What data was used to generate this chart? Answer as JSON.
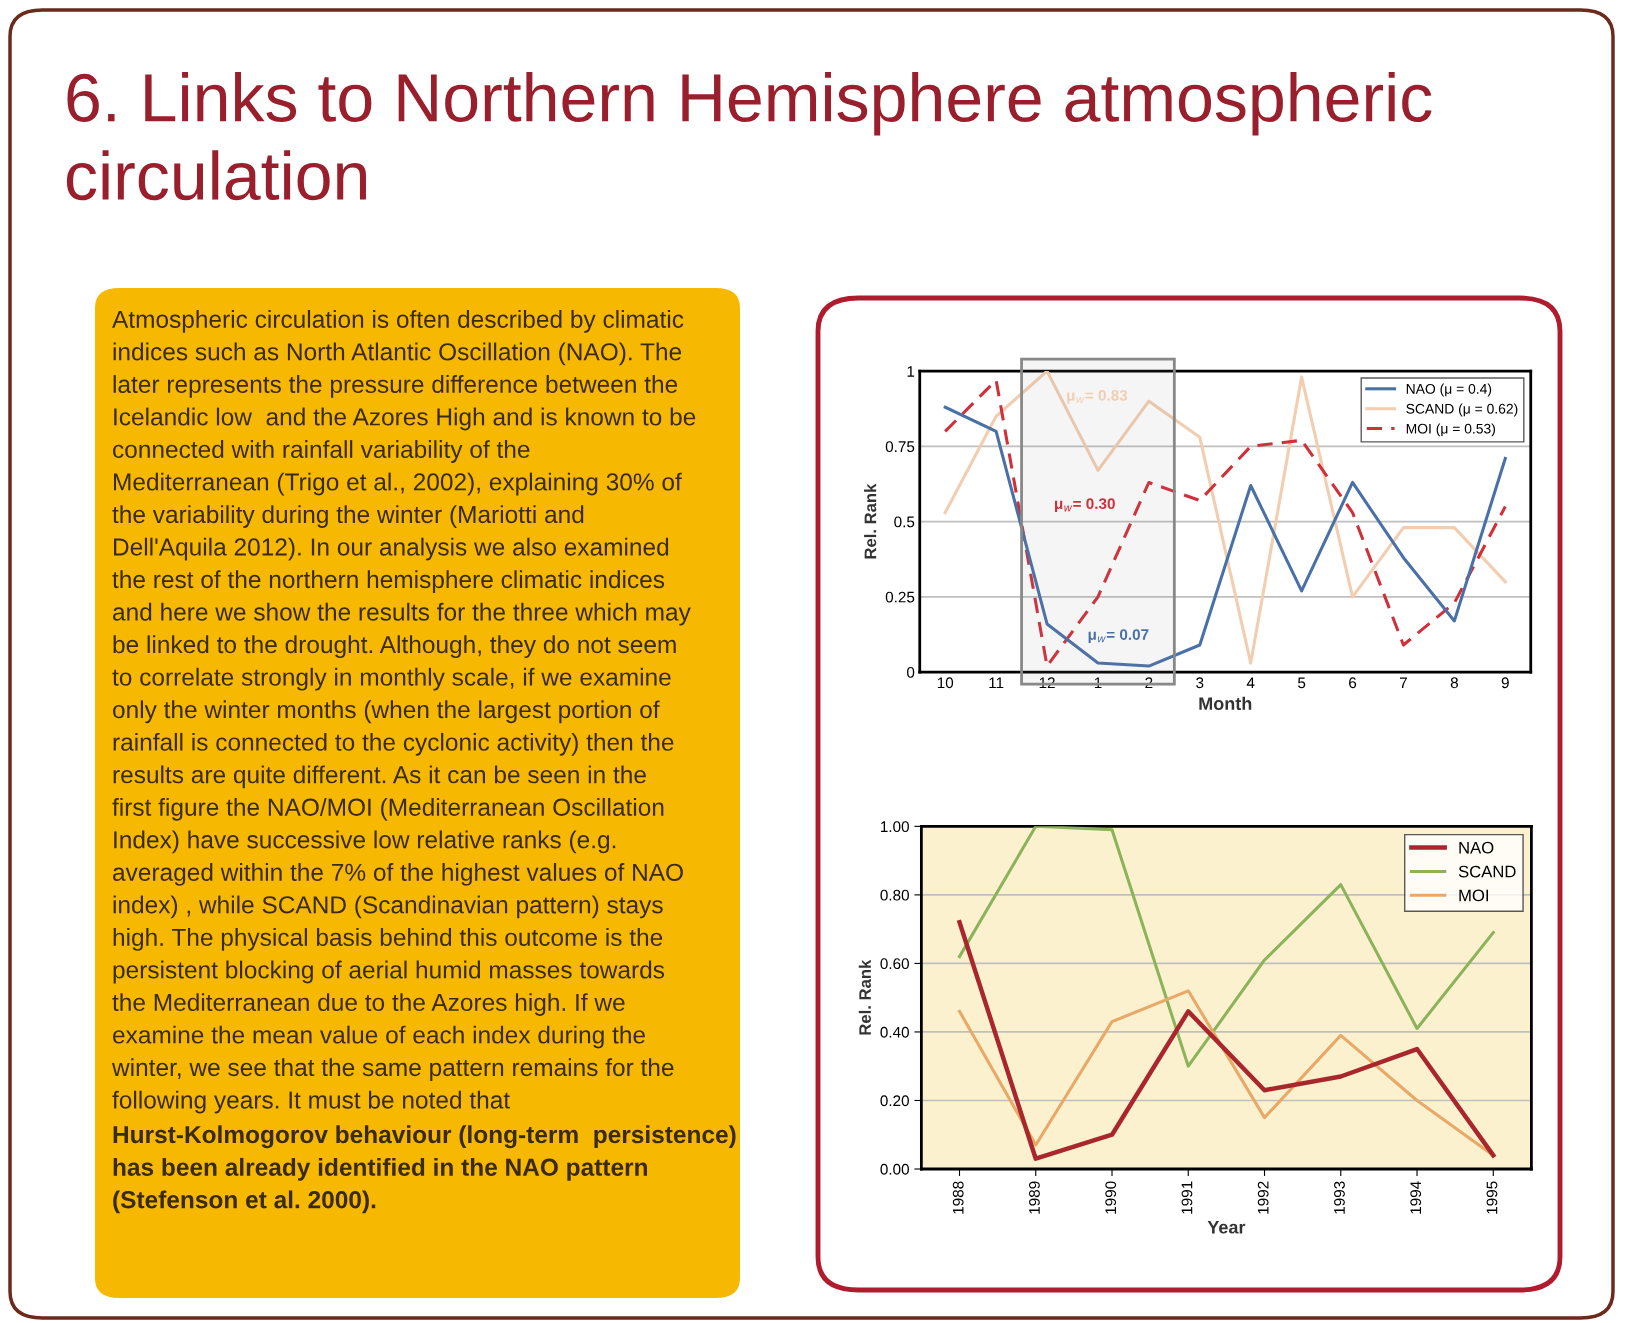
{
  "chart_data": [
    {
      "type": "other",
      "title": "6. Links to Northern Hemisphere atmospheric circulation",
      "annotations": [
        "Atmospheric circulation is often described by climatic\nindices such as North Atlantic Oscillation (NAO). The\nlater represents the pressure difference between the\nIcelandic low  and the Azores High and is known to be\nconnected with rainfall variability of the\nMediterranean (Trigo et al., 2002), explaining 30% of\nthe variability during the winter (Mariotti and\nDell'Aquila 2012). In our analysis we also examined\nthe rest of the northern hemisphere climatic indices\nand here we show the results for the three which may\nbe linked to the drought. Although, they do not seem\nto correlate strongly in monthly scale, if we examine\nonly the winter months (when the largest portion of\nrainfall is connected to the cyclonic activity) then the\nresults are quite different. As it can be seen in the\nfirst figure the NAO/MOI (Mediterranean Oscillation\nIndex) have successive low relative ranks (e.g.\naveraged within the 7% of the highest values of NAO\nindex) , while SCAND (Scandinavian pattern) stays\nhigh. The physical basis behind this outcome is the\npersistent blocking of aerial humid masses towards\nthe Mediterranean due to the Azores high. If we\nexamine the mean value of each index during the\nwinter, we see that the same pattern remains for the\nfollowing years. It must be noted that",
        "Hurst-Kolmogorov behaviour (long-term  persistence)\nhas been already identified in the NAO pattern\n(Stefenson et al. 2000)."
      ]
    },
    {
      "type": "line",
      "xlabel": "Month",
      "ylabel": "Rel. Rank",
      "categories": [
        "10",
        "11",
        "12",
        "1",
        "2",
        "3",
        "4",
        "5",
        "6",
        "7",
        "8",
        "9"
      ],
      "series": [
        {
          "name": "NAO (μ = 0.4)",
          "color": "#4a70a8",
          "line_style": "solid",
          "values": [
            0.88,
            0.8,
            0.16,
            0.03,
            0.02,
            0.09,
            0.62,
            0.27,
            0.63,
            0.38,
            0.17,
            0.71
          ]
        },
        {
          "name": "SCAND (μ = 0.62)",
          "color": "#f2cdb0",
          "line_style": "solid",
          "values": [
            0.53,
            0.85,
            1.0,
            0.67,
            0.9,
            0.78,
            0.03,
            0.98,
            0.25,
            0.48,
            0.48,
            0.3
          ]
        },
        {
          "name": "MOI (μ = 0.53)",
          "color": "#d0303a",
          "line_style": "dashed",
          "values": [
            0.8,
            0.97,
            0.02,
            0.25,
            0.63,
            0.57,
            0.75,
            0.77,
            0.53,
            0.09,
            0.23,
            0.55
          ]
        }
      ],
      "annotations": [
        "μ$_{w}$= 0.07",
        "μ$_{w}$= 0.83",
        "μ$_{w}$= 0.30"
      ],
      "bands": [
        {
          "axis": "x",
          "from": "12",
          "to": "2",
          "color": "#888888"
        }
      ],
      "ylim": [
        0,
        1
      ],
      "yticks": [
        0,
        0.25,
        0.5,
        0.75,
        1
      ],
      "grid": "y",
      "legend": "top right",
      "marker": "none"
    },
    {
      "type": "line",
      "xlabel": "Year",
      "ylabel": "Rel. Rank",
      "categories": [
        "1988",
        "1989",
        "1990",
        "1991",
        "1992",
        "1993",
        "1994",
        "1995"
      ],
      "series": [
        {
          "name": "NAO",
          "color": "#a8262c",
          "values": [
            0.72,
            0.03,
            0.1,
            0.46,
            0.23,
            0.27,
            0.35,
            0.04
          ]
        },
        {
          "name": "SCAND",
          "color": "#8cb35a",
          "values": [
            0.62,
            1.0,
            0.99,
            0.3,
            0.61,
            0.83,
            0.41,
            0.69
          ]
        },
        {
          "name": "MOI",
          "color": "#e8a868",
          "values": [
            0.46,
            0.07,
            0.43,
            0.52,
            0.15,
            0.39,
            0.2,
            0.04
          ]
        }
      ],
      "ylim": [
        0,
        1
      ],
      "yticks": [
        {
          "value": 0,
          "label": "0.00"
        },
        {
          "value": 0.2,
          "label": "0.20"
        },
        {
          "value": 0.4,
          "label": "0.40"
        },
        {
          "value": 0.6,
          "label": "0.60"
        },
        {
          "value": 0.8,
          "label": "0.80"
        },
        {
          "value": 1,
          "label": "1.00"
        }
      ],
      "grid": "y",
      "legend": "top right",
      "marker": "none"
    }
  ]
}
